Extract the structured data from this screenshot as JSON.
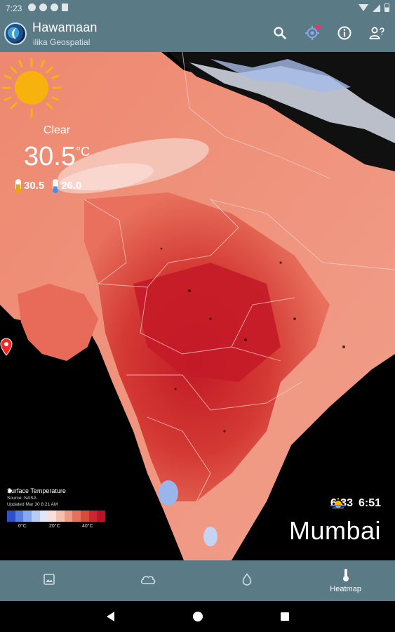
{
  "status_bar": {
    "time": "7:23"
  },
  "app": {
    "title": "Hawamaan",
    "subtitle": "ilika Geospatial"
  },
  "toolbar": {
    "icons": [
      "search-icon",
      "location-target-icon",
      "info-icon",
      "account-help-icon"
    ],
    "location_badge_color": "#ff2a68"
  },
  "weather": {
    "condition": "Clear",
    "temperature": "30.5",
    "unit": "°C",
    "max_temp": "30.5",
    "min_temp": "26.0"
  },
  "legend": {
    "title": "Surface Temperature",
    "source": "Source: NASA",
    "updated": "Updated Mar 30 8:21 AM",
    "ticks": [
      "0°C",
      "20°C",
      "40°C"
    ],
    "colors": [
      "#3050c8",
      "#5a7ee0",
      "#8aa8ee",
      "#b8ccf4",
      "#e0e8f8",
      "#f4e0dc",
      "#f4c0b0",
      "#ef9a85",
      "#e5725c",
      "#d84a3c",
      "#c82830",
      "#b81426"
    ]
  },
  "sun_times": {
    "sunrise": "6:33",
    "sunset": "6:51"
  },
  "location": {
    "city": "Mumbai"
  },
  "bottom_nav": {
    "items": [
      {
        "icon": "image-icon",
        "label": ""
      },
      {
        "icon": "cloud-icon",
        "label": ""
      },
      {
        "icon": "water-drop-icon",
        "label": ""
      },
      {
        "icon": "thermometer-icon",
        "label": "Heatmap"
      }
    ],
    "active_index": 3
  },
  "theme": {
    "bar_color": "#5a7a86",
    "heat_dark": "#c41e2a",
    "heat_light": "#ee8e7c"
  }
}
